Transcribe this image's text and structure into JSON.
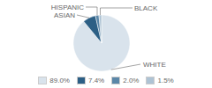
{
  "chart_data": {
    "type": "pie",
    "categories": [
      "WHITE",
      "ASIAN",
      "HISPANIC",
      "BLACK"
    ],
    "values": [
      89.0,
      7.4,
      2.0,
      1.5
    ],
    "value_labels": [
      "89.0%",
      "7.4%",
      "2.0%",
      "1.5%"
    ],
    "colors": [
      "#d9e3ec",
      "#2c5f85",
      "#5b87a8",
      "#aec3d4"
    ],
    "legend": "bottom"
  }
}
